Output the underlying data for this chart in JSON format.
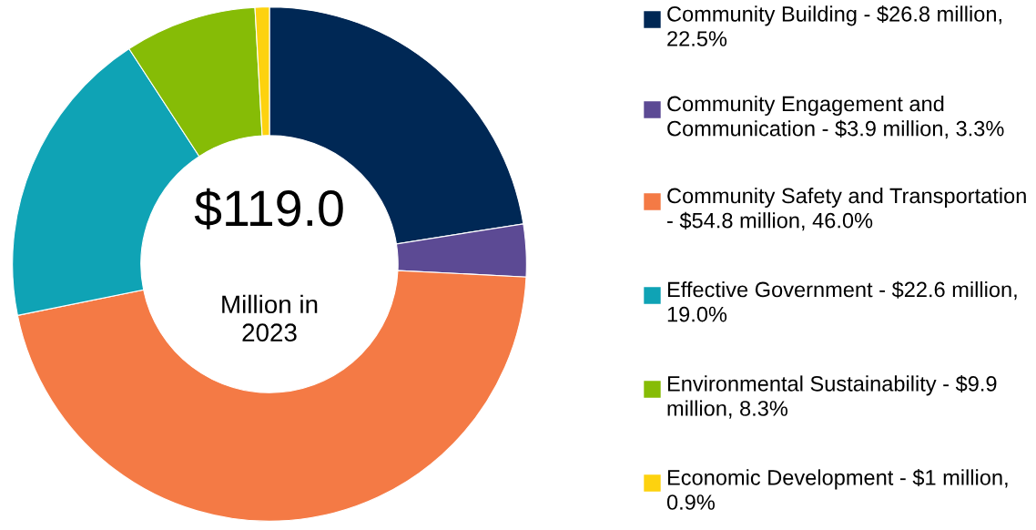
{
  "chart_data": {
    "type": "donut",
    "categories": [
      "Community Building - $26.8 million, 22.5%",
      "Community Engagement and Communication - $3.9 million, 3.3%",
      "Community Safety and Transportation - $54.8 million, 46.0%",
      "Effective Government - $22.6 million, 19.0%",
      "Environmental Sustainability - $9.9 million, 8.3%",
      "Economic Development - $1 million, 0.9%"
    ],
    "values": [
      22.5,
      3.3,
      46.0,
      19.0,
      8.3,
      0.9
    ],
    "colors": [
      "#002855",
      "#5c4a94",
      "#f47a45",
      "#0fa3b5",
      "#86bc06",
      "#fdd20f"
    ],
    "annotations": [
      "$119.0",
      "Million in 2023"
    ],
    "legend": "right"
  }
}
